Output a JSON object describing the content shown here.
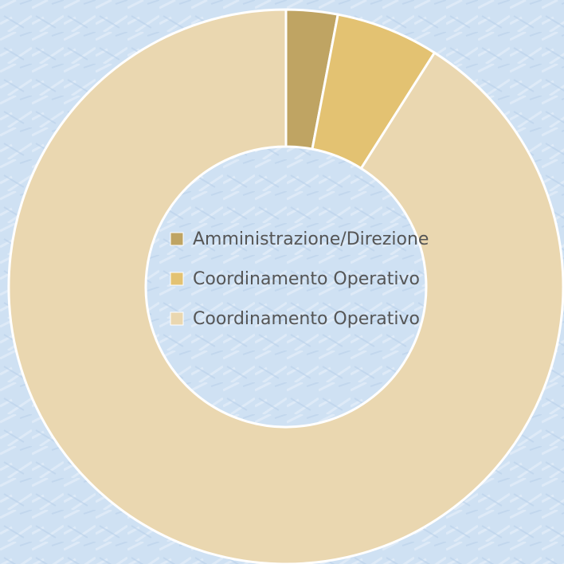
{
  "chart_data": {
    "type": "donut",
    "series": [
      {
        "name": "Amministrazione/Direzione",
        "color": "#bfa463",
        "values": [
          3
        ]
      },
      {
        "name": "Coordinamento Operativo",
        "color": "#e3c272",
        "values": [
          6
        ]
      },
      {
        "name": "Coordinamento Operativo",
        "color": "#ead7b0",
        "values": [
          91
        ]
      }
    ],
    "legend": "center"
  }
}
